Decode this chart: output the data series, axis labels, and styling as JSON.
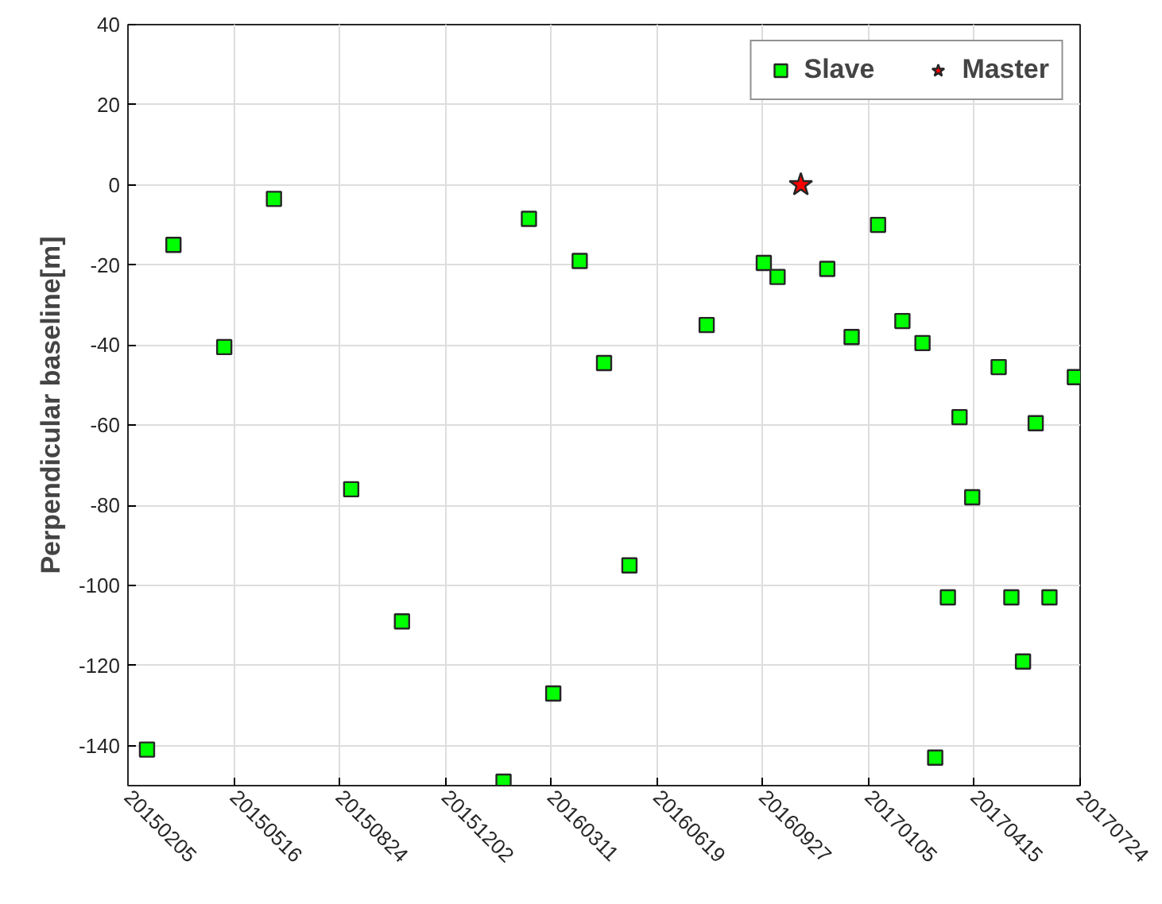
{
  "chart_data": {
    "type": "scatter",
    "ylabel": "Perpendicular baseline[m]",
    "xlim": [
      "2015-02-05",
      "2017-07-24"
    ],
    "xticks": [
      {
        "value": "2015-02-05",
        "label": "20150205"
      },
      {
        "value": "2015-05-16",
        "label": "20150516"
      },
      {
        "value": "2015-08-24",
        "label": "20150824"
      },
      {
        "value": "2015-12-02",
        "label": "20151202"
      },
      {
        "value": "2016-03-11",
        "label": "20160311"
      },
      {
        "value": "2016-06-19",
        "label": "20160619"
      },
      {
        "value": "2016-09-27",
        "label": "20160927"
      },
      {
        "value": "2017-01-05",
        "label": "20170105"
      },
      {
        "value": "2017-04-15",
        "label": "20170415"
      },
      {
        "value": "2017-07-24",
        "label": "20170724"
      }
    ],
    "ylim": [
      -150,
      40
    ],
    "yticks": [
      -140,
      -120,
      -100,
      -80,
      -60,
      -40,
      -20,
      0,
      20,
      40
    ],
    "grid": true,
    "legend": "top right",
    "series": [
      {
        "name": "Slave",
        "color": "#00ff00",
        "marker": "square",
        "x": [
          "2015-02-23",
          "2015-03-20",
          "2015-05-07",
          "2015-06-23",
          "2015-09-04",
          "2015-10-22",
          "2016-01-26",
          "2016-02-19",
          "2016-03-13",
          "2016-04-07",
          "2016-04-30",
          "2016-05-24",
          "2016-08-05",
          "2016-09-28",
          "2016-10-11",
          "2016-11-27",
          "2016-12-20",
          "2017-01-14",
          "2017-02-06",
          "2017-02-25",
          "2017-03-09",
          "2017-03-21",
          "2017-04-01",
          "2017-04-13",
          "2017-05-08",
          "2017-05-20",
          "2017-05-31",
          "2017-06-12",
          "2017-06-25",
          "2017-07-19"
        ],
        "values": [
          -141,
          -15,
          -40.5,
          -3.5,
          -76,
          -109,
          -149,
          -8.5,
          -127,
          -19,
          -44.5,
          -95,
          -35,
          -19.5,
          -23,
          -21,
          -38,
          -10,
          -34,
          -39.5,
          -143,
          -103,
          -58,
          -78,
          -45.5,
          -103,
          -119,
          -59.5,
          -103,
          -48
        ]
      },
      {
        "name": "Master",
        "color": "#ff0000",
        "marker": "star",
        "x": [
          "2016-11-02"
        ],
        "values": [
          0
        ]
      }
    ]
  }
}
